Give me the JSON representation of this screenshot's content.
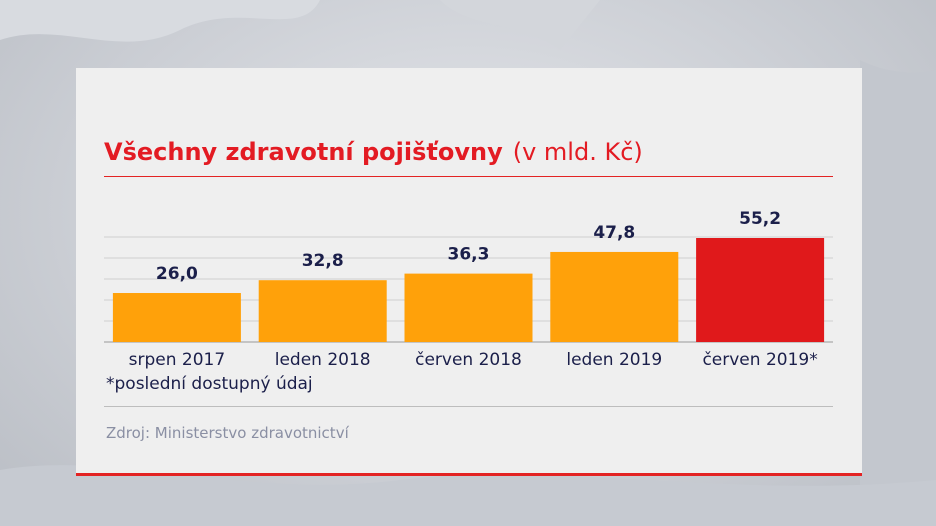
{
  "title": "Všechny zdravotní pojišťovny",
  "unit": "(v mld. Kč)",
  "footnote": "*poslední dostupný údaj",
  "source": "Zdroj: Ministerstvo zdravotnictví",
  "colors": {
    "bar": "#ffa10a",
    "highlight": "#e0191b",
    "title": "#e31b23",
    "text": "#1b1f4a"
  },
  "chart_data": {
    "type": "bar",
    "title": "Všechny zdravotní pojišťovny",
    "subtitle": "(v mld. Kč)",
    "categories": [
      "srpen 2017",
      "leden 2018",
      "červen 2018",
      "leden 2019",
      "červen 2019*"
    ],
    "values": [
      26.0,
      32.8,
      36.3,
      47.8,
      55.2
    ],
    "value_labels": [
      "26,0",
      "32,8",
      "36,3",
      "47,8",
      "55,2"
    ],
    "highlighted_index": 4,
    "ylim": [
      0,
      55.2
    ],
    "grid": true,
    "legend": "none"
  }
}
